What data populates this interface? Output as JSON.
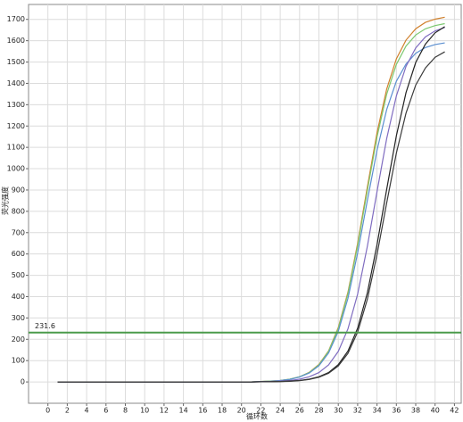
{
  "chart_data": {
    "type": "line",
    "x_label": "循环数",
    "y_label": "荧光强度",
    "x": [
      1,
      2,
      3,
      4,
      5,
      6,
      7,
      8,
      9,
      10,
      11,
      12,
      13,
      14,
      15,
      16,
      17,
      18,
      19,
      20,
      21,
      22,
      23,
      24,
      25,
      26,
      27,
      28,
      29,
      30,
      31,
      32,
      33,
      34,
      35,
      36,
      37,
      38,
      39,
      40,
      41
    ],
    "series": [
      {
        "color": "#d0802c",
        "values": [
          0,
          0,
          0,
          0,
          0,
          0,
          0,
          0,
          0,
          0,
          0,
          0,
          0,
          0,
          0,
          0,
          0,
          0,
          0,
          0,
          0,
          2,
          4,
          7,
          13,
          24,
          45,
          82,
          146,
          255,
          421,
          650,
          913,
          1168,
          1373,
          1515,
          1603,
          1656,
          1686,
          1701,
          1710
        ]
      },
      {
        "color": "#7cc870",
        "values": [
          0,
          0,
          0,
          0,
          0,
          0,
          0,
          0,
          0,
          0,
          0,
          0,
          0,
          0,
          0,
          0,
          0,
          0,
          0,
          0,
          0,
          2,
          4,
          7,
          13,
          24,
          44,
          80,
          144,
          250,
          414,
          639,
          897,
          1148,
          1349,
          1489,
          1575,
          1627,
          1656,
          1671,
          1680
        ]
      },
      {
        "color": "#5b8fd0",
        "values": [
          0,
          0,
          0,
          0,
          0,
          0,
          0,
          0,
          0,
          0,
          0,
          0,
          0,
          0,
          0,
          0,
          0,
          0,
          0,
          0,
          0,
          2,
          3,
          7,
          12,
          23,
          42,
          76,
          136,
          237,
          392,
          605,
          850,
          1086,
          1277,
          1410,
          1491,
          1541,
          1568,
          1582,
          1590
        ]
      },
      {
        "color": "#7f6cc0",
        "values": [
          0,
          0,
          0,
          0,
          0,
          0,
          0,
          0,
          0,
          0,
          0,
          0,
          0,
          0,
          0,
          0,
          0,
          0,
          0,
          0,
          0,
          1,
          2,
          4,
          7,
          13,
          24,
          44,
          80,
          143,
          249,
          412,
          635,
          892,
          1141,
          1341,
          1480,
          1566,
          1618,
          1646,
          1662
        ]
      },
      {
        "color": "#222222",
        "values": [
          0,
          0,
          0,
          0,
          0,
          0,
          0,
          0,
          0,
          0,
          0,
          0,
          0,
          0,
          0,
          0,
          0,
          0,
          0,
          0,
          0,
          1,
          1,
          2,
          4,
          7,
          13,
          24,
          44,
          81,
          145,
          252,
          417,
          643,
          903,
          1154,
          1357,
          1498,
          1584,
          1637,
          1666
        ]
      },
      {
        "color": "#3a3a3a",
        "values": [
          0,
          0,
          0,
          0,
          0,
          0,
          0,
          0,
          0,
          0,
          0,
          0,
          0,
          0,
          0,
          0,
          0,
          0,
          0,
          0,
          0,
          1,
          1,
          2,
          3,
          6,
          12,
          22,
          41,
          75,
          134,
          234,
          387,
          597,
          839,
          1073,
          1261,
          1392,
          1472,
          1522,
          1548
        ]
      }
    ],
    "threshold": 231.6,
    "threshold_color": "#4a9a4a",
    "xlim": [
      -2,
      42.7
    ],
    "ylim": [
      -100,
      1770
    ],
    "xticks": [
      0,
      2,
      4,
      6,
      8,
      10,
      12,
      14,
      16,
      18,
      20,
      22,
      24,
      26,
      28,
      30,
      32,
      34,
      36,
      38,
      40,
      42
    ],
    "yticks": [
      0,
      100,
      200,
      300,
      400,
      500,
      600,
      700,
      800,
      900,
      1000,
      1100,
      1200,
      1300,
      1400,
      1500,
      1600,
      1700
    ],
    "grid": true
  }
}
